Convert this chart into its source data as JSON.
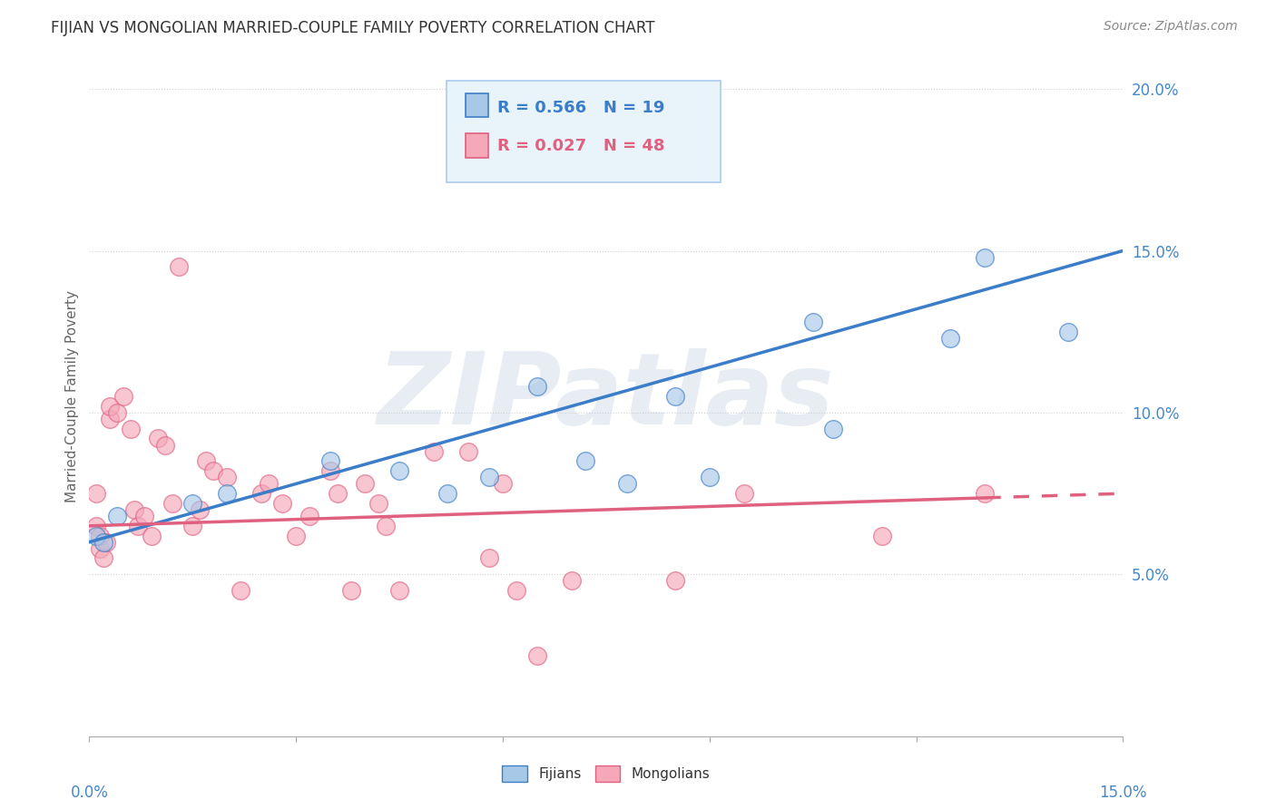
{
  "title": "FIJIAN VS MONGOLIAN MARRIED-COUPLE FAMILY POVERTY CORRELATION CHART",
  "source": "Source: ZipAtlas.com",
  "ylabel": "Married-Couple Family Poverty",
  "xlim": [
    0,
    15
  ],
  "ylim": [
    0,
    21
  ],
  "watermark": "ZIPatlas",
  "fijian_R": "0.566",
  "fijian_N": "19",
  "mongolian_R": "0.027",
  "mongolian_N": "48",
  "fijian_color": "#A8C8E8",
  "mongolian_color": "#F4A8B8",
  "fijian_line_color": "#3B7DC8",
  "mongolian_line_color": "#E06080",
  "fijian_x": [
    0.1,
    0.4,
    1.5,
    2.0,
    3.5,
    4.5,
    5.2,
    5.8,
    6.5,
    7.2,
    7.8,
    8.5,
    9.0,
    10.5,
    10.8,
    12.5,
    13.0,
    14.2,
    0.2
  ],
  "fijian_y": [
    6.2,
    6.8,
    7.2,
    7.5,
    8.5,
    8.2,
    7.5,
    8.0,
    10.8,
    8.5,
    7.8,
    10.5,
    8.0,
    12.8,
    9.5,
    12.3,
    14.8,
    12.5,
    6.0
  ],
  "mongolian_x": [
    0.1,
    0.1,
    0.15,
    0.15,
    0.2,
    0.25,
    0.3,
    0.3,
    0.4,
    0.5,
    0.6,
    0.65,
    0.7,
    0.8,
    0.9,
    1.0,
    1.1,
    1.2,
    1.3,
    1.5,
    1.6,
    1.7,
    1.8,
    2.0,
    2.2,
    2.5,
    2.6,
    2.8,
    3.0,
    3.2,
    3.5,
    3.6,
    3.8,
    4.0,
    4.2,
    4.3,
    4.5,
    5.0,
    5.5,
    5.8,
    6.0,
    6.2,
    6.5,
    7.0,
    8.5,
    9.5,
    11.5,
    13.0
  ],
  "mongolian_y": [
    6.5,
    7.5,
    5.8,
    6.2,
    5.5,
    6.0,
    9.8,
    10.2,
    10.0,
    10.5,
    9.5,
    7.0,
    6.5,
    6.8,
    6.2,
    9.2,
    9.0,
    7.2,
    14.5,
    6.5,
    7.0,
    8.5,
    8.2,
    8.0,
    4.5,
    7.5,
    7.8,
    7.2,
    6.2,
    6.8,
    8.2,
    7.5,
    4.5,
    7.8,
    7.2,
    6.5,
    4.5,
    8.8,
    8.8,
    5.5,
    7.8,
    4.5,
    2.5,
    4.8,
    4.8,
    7.5,
    6.2,
    7.5
  ],
  "fijian_trend_x0": 0,
  "fijian_trend_y0": 6.0,
  "fijian_trend_x1": 15,
  "fijian_trend_y1": 15.0,
  "mongolian_trend_x0": 0,
  "mongolian_trend_y0": 6.5,
  "mongolian_trend_x1": 15,
  "mongolian_trend_y1": 7.5,
  "mongolian_solid_end": 13.0,
  "background_color": "#FFFFFF",
  "legend_box_color": "#E8F4FA",
  "grid_color": "#CCCCCC",
  "title_color": "#333333",
  "source_color": "#888888",
  "axis_label_color": "#4488CC",
  "ylabel_color": "#666666"
}
